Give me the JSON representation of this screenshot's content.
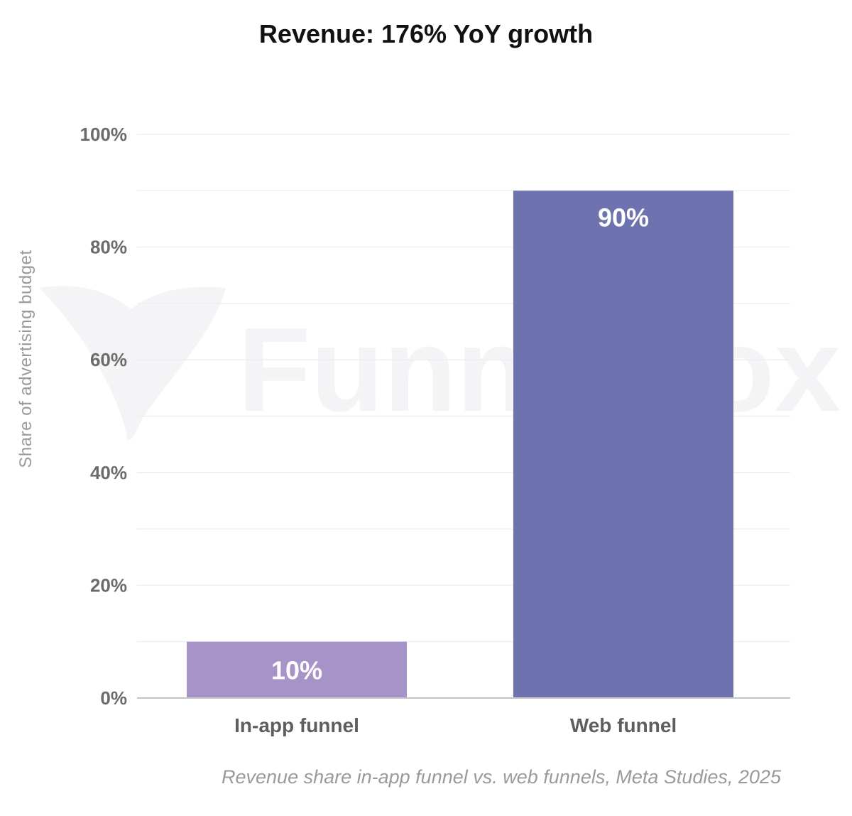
{
  "chart_data": {
    "type": "bar",
    "title": "Revenue: 176% YoY growth",
    "categories": [
      "In-app funnel",
      "Web funnel"
    ],
    "values": [
      10,
      90
    ],
    "value_labels": [
      "10%",
      "90%"
    ],
    "colors": [
      "#a693c8",
      "#6e72ae"
    ],
    "xlabel": "",
    "ylabel": "Share of advertising budget",
    "ylim": [
      0,
      100
    ],
    "yticks": [
      0,
      20,
      40,
      60,
      80,
      100
    ],
    "ytick_labels": [
      "0%",
      "20%",
      "40%",
      "60%",
      "80%",
      "100%"
    ],
    "grid": true,
    "caption": "Revenue share in-app funnel vs. web funnels, Meta Studies, 2025",
    "watermark": "FunnelFox"
  }
}
